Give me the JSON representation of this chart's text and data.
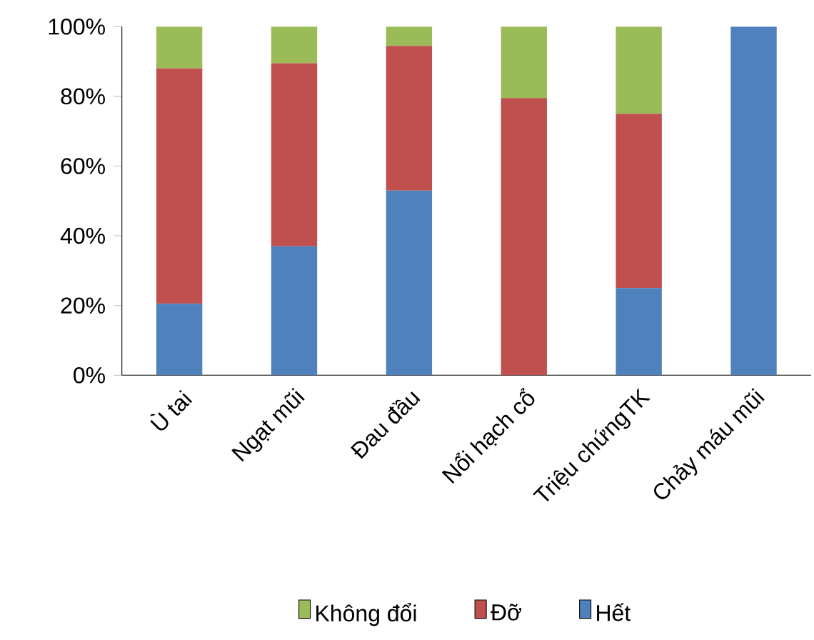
{
  "chart_data": {
    "type": "bar",
    "stacked": true,
    "categories": [
      "Ù tai",
      "Ngạt mũi",
      "Đau đầu",
      "Nổi hạch cổ",
      "Triệu chứngTK",
      "Chảy máu mũi"
    ],
    "series": [
      {
        "name": "Hết",
        "color": "#4f81bd",
        "values": [
          20.5,
          37,
          53,
          0,
          25,
          100
        ]
      },
      {
        "name": "Đỡ",
        "color": "#c0504d",
        "values": [
          67.5,
          52.5,
          41.5,
          79.5,
          50,
          0
        ]
      },
      {
        "name": "Không đổi",
        "color": "#9bbb59",
        "values": [
          12,
          10.5,
          5.5,
          20.5,
          25,
          0
        ]
      }
    ],
    "ylim": [
      0,
      100
    ],
    "yticks": [
      {
        "value": 0,
        "label": "0%"
      },
      {
        "value": 20,
        "label": "20%"
      },
      {
        "value": 40,
        "label": "40%"
      },
      {
        "value": 60,
        "label": "60%"
      },
      {
        "value": 80,
        "label": "80%"
      },
      {
        "value": 100,
        "label": "100%"
      }
    ],
    "legend": "bottom"
  }
}
